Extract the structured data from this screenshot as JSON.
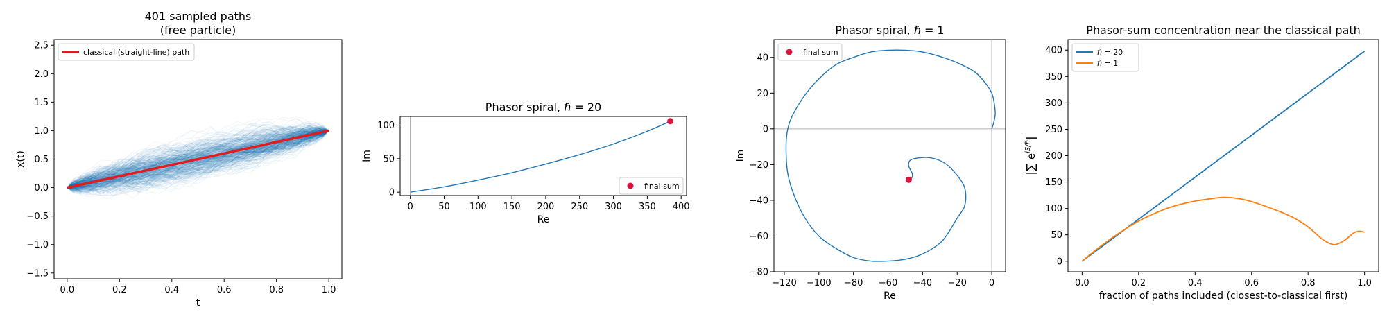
{
  "chart_data": [
    {
      "type": "line",
      "title": "401 sampled paths\n(free particle)",
      "xlabel": "t",
      "ylabel": "x(t)",
      "xlim": [
        -0.05,
        1.05
      ],
      "ylim": [
        -1.6,
        2.6
      ],
      "xticks": [
        0.0,
        0.2,
        0.4,
        0.6,
        0.8,
        1.0
      ],
      "xtick_labels": [
        "0.0",
        "0.2",
        "0.4",
        "0.6",
        "0.8",
        "1.0"
      ],
      "yticks": [
        -1.5,
        -1.0,
        -0.5,
        0.0,
        0.5,
        1.0,
        1.5,
        2.0,
        2.5
      ],
      "ytick_labels": [
        "−1.5",
        "−1.0",
        "−0.5",
        "0.0",
        "0.5",
        "1.0",
        "1.5",
        "2.0",
        "2.5"
      ],
      "legend": {
        "position": "top-left",
        "entries": [
          "classical (straight-line) path"
        ]
      },
      "sampled_paths": {
        "count": 401,
        "start": [
          0.0,
          0.0
        ],
        "end": [
          1.0,
          1.0
        ],
        "color": "#1f77b4",
        "spread_max": 1.3
      },
      "series": [
        {
          "name": "classical (straight-line) path",
          "color": "#e41a1c",
          "x": [
            0.0,
            1.0
          ],
          "y": [
            0.0,
            1.0
          ]
        }
      ]
    },
    {
      "type": "line",
      "title": "Phasor spiral, ℏ = 20",
      "xlabel": "Re",
      "ylabel": "Im",
      "xlim": [
        -15,
        408
      ],
      "ylim": [
        -5,
        113
      ],
      "xticks": [
        0,
        50,
        100,
        150,
        200,
        250,
        300,
        350,
        400
      ],
      "xtick_labels": [
        "0",
        "50",
        "100",
        "150",
        "200",
        "250",
        "300",
        "350",
        "400"
      ],
      "yticks": [
        0,
        50,
        100
      ],
      "ytick_labels": [
        "0",
        "50",
        "100"
      ],
      "reference_lines": {
        "x": 0
      },
      "legend": {
        "position": "lower-right",
        "entries": [
          "final sum"
        ]
      },
      "series": [
        {
          "color": "#1f77b4",
          "x": [
            0,
            50,
            100,
            150,
            200,
            250,
            300,
            350,
            384
          ],
          "y": [
            0,
            8,
            18,
            29,
            42,
            56,
            72,
            91,
            106
          ]
        }
      ],
      "final_sum": {
        "name": "final sum",
        "color": "#dc143c",
        "x": 384,
        "y": 106
      }
    },
    {
      "type": "line",
      "title": "Phasor spiral, ℏ = 1",
      "xlabel": "Re",
      "ylabel": "Im",
      "xlim": [
        -126,
        8
      ],
      "ylim": [
        -80,
        50
      ],
      "xticks": [
        -120,
        -100,
        -80,
        -60,
        -40,
        -20,
        0
      ],
      "xtick_labels": [
        "−120",
        "−100",
        "−80",
        "−60",
        "−40",
        "−20",
        "0"
      ],
      "yticks": [
        -80,
        -60,
        -40,
        -20,
        0,
        20,
        40
      ],
      "ytick_labels": [
        "−80",
        "−60",
        "−40",
        "−20",
        "0",
        "20",
        "40"
      ],
      "reference_lines": {
        "x": 0,
        "y": 0
      },
      "legend": {
        "position": "top-left",
        "entries": [
          "final sum"
        ]
      },
      "series": [
        {
          "color": "#1f77b4",
          "x": [
            0,
            1,
            2,
            1.5,
            0,
            -4,
            -10,
            -20,
            -30,
            -40,
            -50,
            -60,
            -70,
            -80,
            -90,
            -100,
            -108,
            -115,
            -118,
            -119,
            -118,
            -114,
            -108,
            -100,
            -90,
            -80,
            -70,
            -60,
            -50,
            -40,
            -30,
            -25,
            -20,
            -16,
            -15,
            -16,
            -20,
            -26,
            -32,
            -38,
            -44,
            -47,
            -48,
            -48,
            -47,
            -46,
            -46,
            -47,
            -48
          ],
          "y": [
            0,
            3,
            8,
            14,
            20,
            26,
            32,
            37,
            40.5,
            43,
            44,
            44,
            43,
            40,
            36,
            28,
            19,
            8,
            0,
            -10,
            -25,
            -38,
            -50,
            -60,
            -67,
            -72,
            -74,
            -74,
            -73,
            -70,
            -64,
            -58,
            -50,
            -44,
            -38,
            -32,
            -26,
            -20,
            -17,
            -16,
            -16.5,
            -17.5,
            -19,
            -21,
            -23,
            -25,
            -27,
            -28,
            -28.5
          ]
        }
      ],
      "final_sum": {
        "name": "final sum",
        "color": "#dc143c",
        "x": -48,
        "y": -28.5
      }
    },
    {
      "type": "line",
      "title": "Phasor-sum concentration near the classical path",
      "xlabel": "fraction of paths included (closest-to-classical first)",
      "ylabel": "|∑ e^{iS/ℏ}|",
      "xlim": [
        -0.05,
        1.05
      ],
      "ylim": [
        -20,
        420
      ],
      "xticks": [
        0.0,
        0.2,
        0.4,
        0.6,
        0.8,
        1.0
      ],
      "xtick_labels": [
        "0.0",
        "0.2",
        "0.4",
        "0.6",
        "0.8",
        "1.0"
      ],
      "yticks": [
        0,
        50,
        100,
        150,
        200,
        250,
        300,
        350,
        400
      ],
      "ytick_labels": [
        "0",
        "50",
        "100",
        "150",
        "200",
        "250",
        "300",
        "350",
        "400"
      ],
      "legend": {
        "position": "top-left",
        "entries": [
          "ℏ = 20",
          "ℏ = 1"
        ]
      },
      "series": [
        {
          "name": "ℏ = 20",
          "color": "#1f77b4",
          "x": [
            0.0,
            1.0
          ],
          "y": [
            0,
            398
          ]
        },
        {
          "name": "ℏ = 1",
          "color": "#ff7f0e",
          "x": [
            0.0,
            0.05,
            0.1,
            0.15,
            0.2,
            0.25,
            0.3,
            0.35,
            0.4,
            0.45,
            0.5,
            0.55,
            0.6,
            0.65,
            0.7,
            0.75,
            0.8,
            0.85,
            0.88,
            0.9,
            0.93,
            0.96,
            0.98,
            1.0
          ],
          "y": [
            0,
            22,
            42,
            60,
            76,
            89,
            100,
            108,
            114,
            118,
            121,
            119,
            113,
            104,
            94,
            82,
            65,
            42,
            33,
            32,
            40,
            53,
            57,
            55
          ]
        }
      ]
    }
  ]
}
